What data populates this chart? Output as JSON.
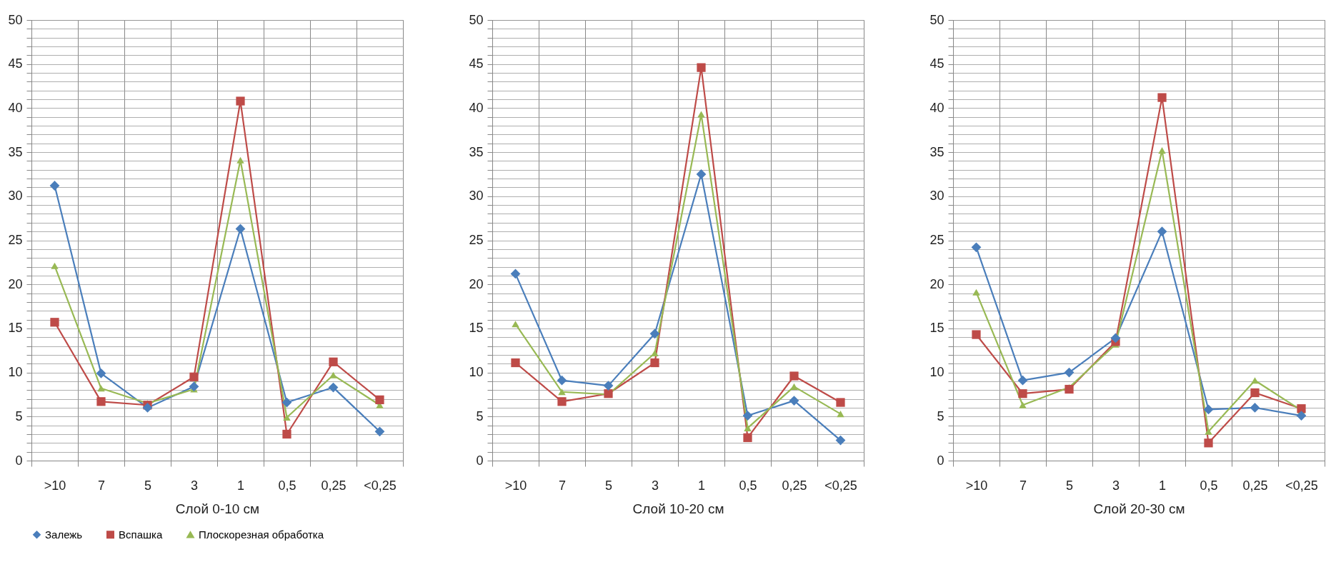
{
  "chart_data": [
    {
      "type": "line",
      "xlabel": "Слой 0-10 см",
      "categories": [
        ">10",
        "7",
        "5",
        "3",
        "1",
        "0,5",
        "0,25",
        "<0,25"
      ],
      "ylim": [
        0,
        50
      ],
      "yticks": [
        0,
        {
          "value": 1,
          "label": null
        },
        {
          "value": 2,
          "label": null
        },
        {
          "value": 3,
          "label": null
        },
        {
          "value": 4,
          "label": null
        },
        5,
        {
          "value": 6,
          "label": null
        },
        {
          "value": 7,
          "label": null
        },
        {
          "value": 8,
          "label": null
        },
        {
          "value": 9,
          "label": null
        },
        10,
        {
          "value": 11,
          "label": null
        },
        {
          "value": 12,
          "label": null
        },
        {
          "value": 13,
          "label": null
        },
        {
          "value": 14,
          "label": null
        },
        15,
        {
          "value": 16,
          "label": null
        },
        {
          "value": 17,
          "label": null
        },
        {
          "value": 18,
          "label": null
        },
        {
          "value": 19,
          "label": null
        },
        20,
        {
          "value": 21,
          "label": null
        },
        {
          "value": 22,
          "label": null
        },
        {
          "value": 23,
          "label": null
        },
        {
          "value": 24,
          "label": null
        },
        25,
        {
          "value": 26,
          "label": null
        },
        {
          "value": 27,
          "label": null
        },
        {
          "value": 28,
          "label": null
        },
        {
          "value": 29,
          "label": null
        },
        30,
        {
          "value": 31,
          "label": null
        },
        {
          "value": 32,
          "label": null
        },
        {
          "value": 33,
          "label": null
        },
        {
          "value": 34,
          "label": null
        },
        35,
        {
          "value": 36,
          "label": null
        },
        {
          "value": 37,
          "label": null
        },
        {
          "value": 38,
          "label": null
        },
        {
          "value": 39,
          "label": null
        },
        40,
        {
          "value": 41,
          "label": null
        },
        {
          "value": 42,
          "label": null
        },
        {
          "value": 43,
          "label": null
        },
        {
          "value": 44,
          "label": null
        },
        45,
        {
          "value": 46,
          "label": null
        },
        {
          "value": 47,
          "label": null
        },
        {
          "value": 48,
          "label": null
        },
        {
          "value": 49,
          "label": null
        },
        50
      ],
      "grid": true,
      "legend": "bottom",
      "series": [
        {
          "name": "Залежь",
          "color": "#4a7ebb",
          "marker": "diamond",
          "values": [
            31.2,
            9.9,
            6.0,
            8.4,
            26.3,
            6.6,
            8.3,
            3.3
          ]
        },
        {
          "name": "Вспашка",
          "color": "#be4b48",
          "marker": "square",
          "values": [
            15.7,
            6.7,
            6.3,
            9.5,
            40.8,
            3.0,
            11.2,
            6.9
          ]
        },
        {
          "name": "Плоскорезная обработка",
          "color": "#98b954",
          "marker": "triangle",
          "values": [
            22.1,
            8.2,
            6.5,
            8.1,
            34.1,
            4.9,
            9.7,
            6.3
          ]
        }
      ]
    },
    {
      "type": "line",
      "xlabel": "Слой 10-20 см",
      "categories": [
        ">10",
        "7",
        "5",
        "3",
        "1",
        "0,5",
        "0,25",
        "<0,25"
      ],
      "ylim": [
        0,
        50
      ],
      "yticks": [
        0,
        {
          "value": 1,
          "label": null
        },
        {
          "value": 2,
          "label": null
        },
        {
          "value": 3,
          "label": null
        },
        {
          "value": 4,
          "label": null
        },
        5,
        {
          "value": 6,
          "label": null
        },
        {
          "value": 7,
          "label": null
        },
        {
          "value": 8,
          "label": null
        },
        {
          "value": 9,
          "label": null
        },
        10,
        {
          "value": 11,
          "label": null
        },
        {
          "value": 12,
          "label": null
        },
        {
          "value": 13,
          "label": null
        },
        {
          "value": 14,
          "label": null
        },
        15,
        {
          "value": 16,
          "label": null
        },
        {
          "value": 17,
          "label": null
        },
        {
          "value": 18,
          "label": null
        },
        {
          "value": 19,
          "label": null
        },
        20,
        {
          "value": 21,
          "label": null
        },
        {
          "value": 22,
          "label": null
        },
        {
          "value": 23,
          "label": null
        },
        {
          "value": 24,
          "label": null
        },
        25,
        {
          "value": 26,
          "label": null
        },
        {
          "value": 27,
          "label": null
        },
        {
          "value": 28,
          "label": null
        },
        {
          "value": 29,
          "label": null
        },
        30,
        {
          "value": 31,
          "label": null
        },
        {
          "value": 32,
          "label": null
        },
        {
          "value": 33,
          "label": null
        },
        {
          "value": 34,
          "label": null
        },
        35,
        {
          "value": 36,
          "label": null
        },
        {
          "value": 37,
          "label": null
        },
        {
          "value": 38,
          "label": null
        },
        {
          "value": 39,
          "label": null
        },
        40,
        {
          "value": 41,
          "label": null
        },
        {
          "value": 42,
          "label": null
        },
        {
          "value": 43,
          "label": null
        },
        {
          "value": 44,
          "label": null
        },
        45,
        {
          "value": 46,
          "label": null
        },
        {
          "value": 47,
          "label": null
        },
        {
          "value": 48,
          "label": null
        },
        {
          "value": 49,
          "label": null
        },
        50
      ],
      "grid": true,
      "legend": "bottom",
      "series": [
        {
          "name": "Залежь",
          "color": "#4a7ebb",
          "marker": "diamond",
          "values": [
            21.2,
            9.1,
            8.5,
            14.4,
            32.5,
            5.1,
            6.8,
            2.3
          ]
        },
        {
          "name": "Вспашка",
          "color": "#be4b48",
          "marker": "square",
          "values": [
            11.1,
            6.7,
            7.6,
            11.1,
            44.6,
            2.6,
            9.6,
            6.6
          ]
        },
        {
          "name": "Плоскорезная обработка",
          "color": "#98b954",
          "marker": "triangle",
          "values": [
            15.5,
            7.8,
            7.5,
            12.2,
            39.3,
            3.7,
            8.4,
            5.3
          ]
        }
      ]
    },
    {
      "type": "line",
      "xlabel": "Слой 20-30 см",
      "categories": [
        ">10",
        "7",
        "5",
        "3",
        "1",
        "0,5",
        "0,25",
        "<0,25"
      ],
      "ylim": [
        0,
        50
      ],
      "yticks": [
        0,
        {
          "value": 1,
          "label": null
        },
        {
          "value": 2,
          "label": null
        },
        {
          "value": 3,
          "label": null
        },
        {
          "value": 4,
          "label": null
        },
        5,
        {
          "value": 6,
          "label": null
        },
        {
          "value": 7,
          "label": null
        },
        {
          "value": 8,
          "label": null
        },
        {
          "value": 9,
          "label": null
        },
        10,
        {
          "value": 11,
          "label": null
        },
        {
          "value": 12,
          "label": null
        },
        {
          "value": 13,
          "label": null
        },
        {
          "value": 14,
          "label": null
        },
        15,
        {
          "value": 16,
          "label": null
        },
        {
          "value": 17,
          "label": null
        },
        {
          "value": 18,
          "label": null
        },
        {
          "value": 19,
          "label": null
        },
        20,
        {
          "value": 21,
          "label": null
        },
        {
          "value": 22,
          "label": null
        },
        {
          "value": 23,
          "label": null
        },
        {
          "value": 24,
          "label": null
        },
        25,
        {
          "value": 26,
          "label": null
        },
        {
          "value": 27,
          "label": null
        },
        {
          "value": 28,
          "label": null
        },
        {
          "value": 29,
          "label": null
        },
        30,
        {
          "value": 31,
          "label": null
        },
        {
          "value": 32,
          "label": null
        },
        {
          "value": 33,
          "label": null
        },
        {
          "value": 34,
          "label": null
        },
        35,
        {
          "value": 36,
          "label": null
        },
        {
          "value": 37,
          "label": null
        },
        {
          "value": 38,
          "label": null
        },
        {
          "value": 39,
          "label": null
        },
        40,
        {
          "value": 41,
          "label": null
        },
        {
          "value": 42,
          "label": null
        },
        {
          "value": 43,
          "label": null
        },
        {
          "value": 44,
          "label": null
        },
        45,
        {
          "value": 46,
          "label": null
        },
        {
          "value": 47,
          "label": null
        },
        {
          "value": 48,
          "label": null
        },
        {
          "value": 49,
          "label": null
        },
        50
      ],
      "grid": true,
      "legend": "bottom",
      "series": [
        {
          "name": "Залежь",
          "color": "#4a7ebb",
          "marker": "diamond",
          "values": [
            24.2,
            9.1,
            10.0,
            13.9,
            26.0,
            5.8,
            6.0,
            5.1
          ]
        },
        {
          "name": "Вспашка",
          "color": "#be4b48",
          "marker": "square",
          "values": [
            14.3,
            7.6,
            8.1,
            13.5,
            41.2,
            2.0,
            7.7,
            5.9
          ]
        },
        {
          "name": "Плоскорезная обработка",
          "color": "#98b954",
          "marker": "triangle",
          "values": [
            19.1,
            6.3,
            8.3,
            13.2,
            35.2,
            3.3,
            9.1,
            5.7
          ]
        }
      ]
    }
  ]
}
